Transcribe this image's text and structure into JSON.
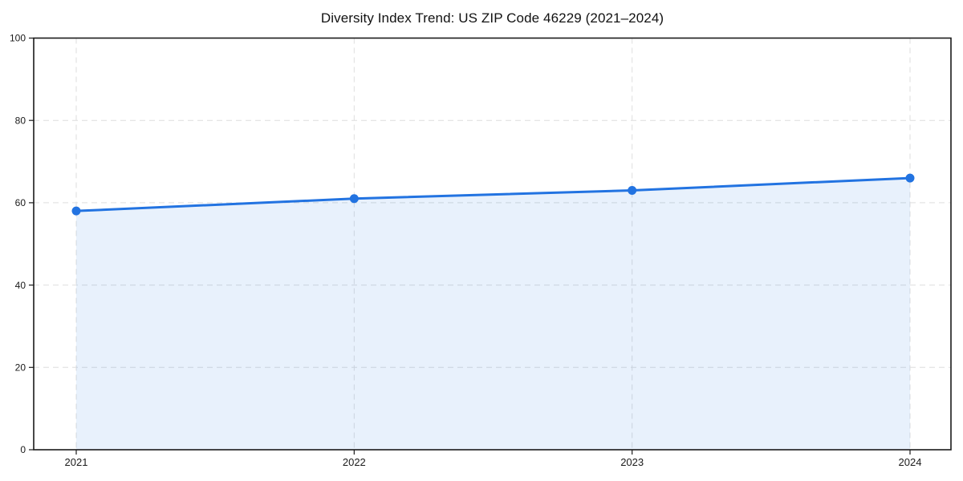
{
  "chart_data": {
    "type": "area",
    "title": "Diversity Index Trend: US ZIP Code 46229 (2021–2024)",
    "categories": [
      "2021",
      "2022",
      "2023",
      "2024"
    ],
    "series": [
      {
        "name": "Diversity Index",
        "values": [
          58,
          61,
          63,
          66
        ]
      }
    ],
    "xlabel": "",
    "ylabel": "",
    "ylim": [
      0,
      100
    ],
    "yticks": [
      0,
      20,
      40,
      60,
      80,
      100
    ],
    "grid": "dashed horizontal and vertical gridlines",
    "legend": "none",
    "marker": "filled circle",
    "colors": {
      "line": "#2273e1",
      "marker": "#2273e1",
      "area_fill": "rgba(34,115,225,0.10)",
      "gridline": "#dedede",
      "axis_border": "#1a1a1a",
      "tick_label": "#1a1a1a",
      "title": "#111111",
      "background": "#ffffff"
    }
  }
}
